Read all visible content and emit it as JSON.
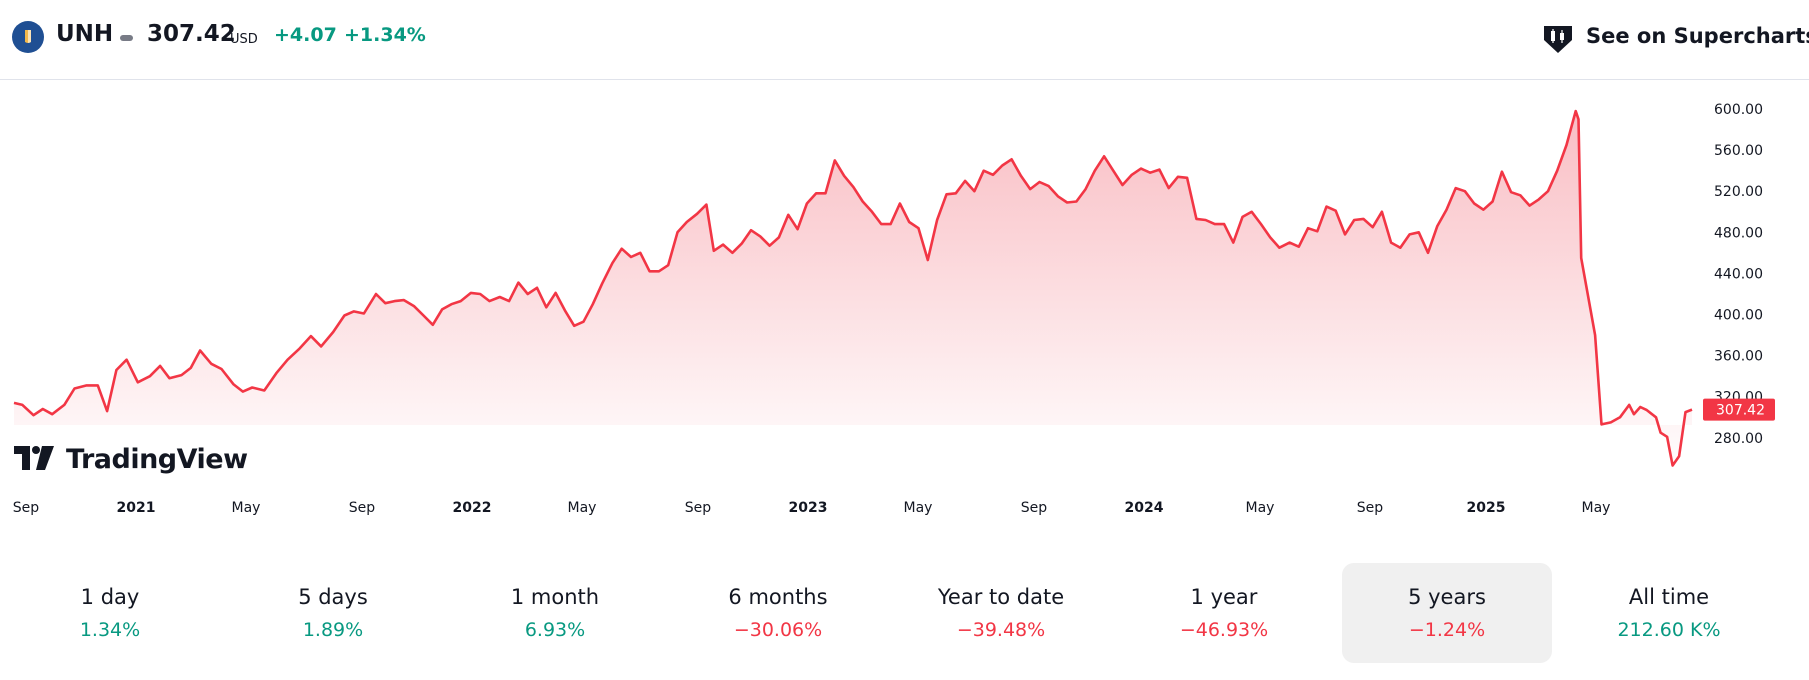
{
  "header": {
    "symbol": "UNH",
    "price": "307.42",
    "currency": "USD",
    "change": "+4.07",
    "change_percent": "+1.34%",
    "change_color": "#089981",
    "logo_icon": "unh-logo-icon",
    "supercharts_label": "See on Supercharts",
    "supercharts_icon": "supercharts-icon"
  },
  "watermark": {
    "text": "TradingView",
    "icon": "tradingview-logo-icon"
  },
  "colors": {
    "line": "#f23645",
    "area_top": "#f7a8b0",
    "last_price_bg": "#f23645",
    "up": "#089981",
    "down": "#f23645"
  },
  "chart_data": {
    "type": "area",
    "title": "",
    "xlabel": "",
    "ylabel": "",
    "y_ticks": [
      "600.00",
      "560.00",
      "520.00",
      "480.00",
      "440.00",
      "400.00",
      "360.00",
      "320.00",
      "280.00"
    ],
    "x_ticks": [
      {
        "label": "Sep",
        "bold": false
      },
      {
        "label": "2021",
        "bold": true
      },
      {
        "label": "May",
        "bold": false
      },
      {
        "label": "Sep",
        "bold": false
      },
      {
        "label": "2022",
        "bold": true
      },
      {
        "label": "May",
        "bold": false
      },
      {
        "label": "Sep",
        "bold": false
      },
      {
        "label": "2023",
        "bold": true
      },
      {
        "label": "May",
        "bold": false
      },
      {
        "label": "Sep",
        "bold": false
      },
      {
        "label": "2024",
        "bold": true
      },
      {
        "label": "May",
        "bold": false
      },
      {
        "label": "Sep",
        "bold": false
      },
      {
        "label": "2025",
        "bold": true
      },
      {
        "label": "May",
        "bold": false
      }
    ],
    "last_price": "307.42",
    "ylim": [
      240,
      630
    ],
    "grid": false,
    "series": [
      {
        "points": [
          [
            "2020-09-01",
            314
          ],
          [
            "2020-09-10",
            312
          ],
          [
            "2020-09-22",
            302
          ],
          [
            "2020-10-02",
            308
          ],
          [
            "2020-10-12",
            303
          ],
          [
            "2020-10-25",
            312
          ],
          [
            "2020-11-05",
            328
          ],
          [
            "2020-11-18",
            331
          ],
          [
            "2020-11-30",
            331
          ],
          [
            "2020-12-10",
            306
          ],
          [
            "2020-12-20",
            346
          ],
          [
            "2020-12-31",
            356
          ],
          [
            "2021-01-12",
            334
          ],
          [
            "2021-01-25",
            340
          ],
          [
            "2021-02-05",
            350
          ],
          [
            "2021-02-15",
            338
          ],
          [
            "2021-02-28",
            341
          ],
          [
            "2021-03-10",
            348
          ],
          [
            "2021-03-20",
            365
          ],
          [
            "2021-04-01",
            352
          ],
          [
            "2021-04-12",
            347
          ],
          [
            "2021-04-25",
            332
          ],
          [
            "2021-05-05",
            325
          ],
          [
            "2021-05-15",
            329
          ],
          [
            "2021-05-28",
            326
          ],
          [
            "2021-06-10",
            343
          ],
          [
            "2021-06-22",
            356
          ],
          [
            "2021-07-05",
            367
          ],
          [
            "2021-07-17",
            379
          ],
          [
            "2021-07-28",
            369
          ],
          [
            "2021-08-10",
            383
          ],
          [
            "2021-08-22",
            399
          ],
          [
            "2021-09-01",
            403
          ],
          [
            "2021-09-12",
            401
          ],
          [
            "2021-09-25",
            420
          ],
          [
            "2021-10-05",
            411
          ],
          [
            "2021-10-15",
            413
          ],
          [
            "2021-10-25",
            414
          ],
          [
            "2021-11-05",
            408
          ],
          [
            "2021-11-15",
            399
          ],
          [
            "2021-11-25",
            390
          ],
          [
            "2021-12-05",
            405
          ],
          [
            "2021-12-15",
            410
          ],
          [
            "2021-12-25",
            413
          ],
          [
            "2022-01-05",
            421
          ],
          [
            "2022-01-15",
            420
          ],
          [
            "2022-01-25",
            413
          ],
          [
            "2022-02-05",
            417
          ],
          [
            "2022-02-15",
            413
          ],
          [
            "2022-02-25",
            431
          ],
          [
            "2022-03-07",
            420
          ],
          [
            "2022-03-17",
            426
          ],
          [
            "2022-03-27",
            407
          ],
          [
            "2022-04-06",
            421
          ],
          [
            "2022-04-16",
            404
          ],
          [
            "2022-04-26",
            389
          ],
          [
            "2022-05-06",
            393
          ],
          [
            "2022-05-16",
            410
          ],
          [
            "2022-05-26",
            430
          ],
          [
            "2022-06-06",
            450
          ],
          [
            "2022-06-16",
            464
          ],
          [
            "2022-06-26",
            456
          ],
          [
            "2022-07-06",
            460
          ],
          [
            "2022-07-16",
            442
          ],
          [
            "2022-07-26",
            442
          ],
          [
            "2022-08-05",
            448
          ],
          [
            "2022-08-15",
            480
          ],
          [
            "2022-08-25",
            490
          ],
          [
            "2022-09-05",
            498
          ],
          [
            "2022-09-15",
            507
          ],
          [
            "2022-09-23",
            462
          ],
          [
            "2022-10-03",
            468
          ],
          [
            "2022-10-13",
            460
          ],
          [
            "2022-10-23",
            469
          ],
          [
            "2022-11-02",
            482
          ],
          [
            "2022-11-12",
            476
          ],
          [
            "2022-11-22",
            467
          ],
          [
            "2022-12-02",
            475
          ],
          [
            "2022-12-12",
            497
          ],
          [
            "2022-12-22",
            483
          ],
          [
            "2023-01-01",
            508
          ],
          [
            "2023-01-11",
            518
          ],
          [
            "2023-01-21",
            518
          ],
          [
            "2023-01-31",
            550
          ],
          [
            "2023-02-10",
            535
          ],
          [
            "2023-02-20",
            524
          ],
          [
            "2023-03-02",
            510
          ],
          [
            "2023-03-12",
            500
          ],
          [
            "2023-03-22",
            488
          ],
          [
            "2023-04-01",
            488
          ],
          [
            "2023-04-11",
            508
          ],
          [
            "2023-04-21",
            490
          ],
          [
            "2023-05-01",
            484
          ],
          [
            "2023-05-11",
            453
          ],
          [
            "2023-05-21",
            492
          ],
          [
            "2023-05-31",
            517
          ],
          [
            "2023-06-10",
            518
          ],
          [
            "2023-06-20",
            530
          ],
          [
            "2023-06-30",
            520
          ],
          [
            "2023-07-10",
            540
          ],
          [
            "2023-07-20",
            536
          ],
          [
            "2023-07-30",
            545
          ],
          [
            "2023-08-09",
            551
          ],
          [
            "2023-08-19",
            535
          ],
          [
            "2023-08-29",
            522
          ],
          [
            "2023-09-08",
            529
          ],
          [
            "2023-09-18",
            525
          ],
          [
            "2023-09-28",
            515
          ],
          [
            "2023-10-08",
            509
          ],
          [
            "2023-10-18",
            510
          ],
          [
            "2023-10-28",
            522
          ],
          [
            "2023-11-07",
            540
          ],
          [
            "2023-11-17",
            554
          ],
          [
            "2023-11-27",
            540
          ],
          [
            "2023-12-07",
            526
          ],
          [
            "2023-12-17",
            536
          ],
          [
            "2023-12-27",
            542
          ],
          [
            "2024-01-06",
            538
          ],
          [
            "2024-01-16",
            541
          ],
          [
            "2024-01-26",
            523
          ],
          [
            "2024-02-05",
            534
          ],
          [
            "2024-02-15",
            533
          ],
          [
            "2024-02-25",
            493
          ],
          [
            "2024-03-06",
            492
          ],
          [
            "2024-03-16",
            488
          ],
          [
            "2024-03-26",
            488
          ],
          [
            "2024-04-05",
            470
          ],
          [
            "2024-04-15",
            495
          ],
          [
            "2024-04-25",
            500
          ],
          [
            "2024-05-05",
            488
          ],
          [
            "2024-05-15",
            475
          ],
          [
            "2024-05-25",
            465
          ],
          [
            "2024-06-05",
            470
          ],
          [
            "2024-06-15",
            466
          ],
          [
            "2024-06-25",
            484
          ],
          [
            "2024-07-05",
            481
          ],
          [
            "2024-07-15",
            505
          ],
          [
            "2024-07-25",
            501
          ],
          [
            "2024-08-04",
            478
          ],
          [
            "2024-08-14",
            492
          ],
          [
            "2024-08-24",
            493
          ],
          [
            "2024-09-03",
            485
          ],
          [
            "2024-09-13",
            500
          ],
          [
            "2024-09-23",
            470
          ],
          [
            "2024-10-03",
            465
          ],
          [
            "2024-10-13",
            478
          ],
          [
            "2024-10-23",
            480
          ],
          [
            "2024-11-02",
            460
          ],
          [
            "2024-11-12",
            486
          ],
          [
            "2024-11-22",
            502
          ],
          [
            "2024-12-02",
            523
          ],
          [
            "2024-12-12",
            520
          ],
          [
            "2024-12-22",
            508
          ],
          [
            "2025-01-01",
            502
          ],
          [
            "2025-01-11",
            510
          ],
          [
            "2025-01-21",
            539
          ],
          [
            "2025-01-31",
            519
          ],
          [
            "2025-02-10",
            516
          ],
          [
            "2025-02-20",
            506
          ],
          [
            "2025-03-02",
            512
          ],
          [
            "2025-03-12",
            520
          ],
          [
            "2025-03-22",
            540
          ],
          [
            "2025-04-01",
            565
          ],
          [
            "2025-04-11",
            598
          ],
          [
            "2025-04-14",
            590
          ],
          [
            "2025-04-17",
            455
          ],
          [
            "2025-04-24",
            420
          ],
          [
            "2025-05-02",
            380
          ],
          [
            "2025-05-09",
            293
          ],
          [
            "2025-05-19",
            295
          ],
          [
            "2025-05-29",
            300
          ],
          [
            "2025-06-08",
            312
          ],
          [
            "2025-06-13",
            303
          ],
          [
            "2025-06-20",
            310
          ],
          [
            "2025-06-27",
            307
          ],
          [
            "2025-07-07",
            300
          ],
          [
            "2025-07-12",
            285
          ],
          [
            "2025-07-19",
            281
          ],
          [
            "2025-07-25",
            253
          ],
          [
            "2025-08-01",
            262
          ],
          [
            "2025-08-08",
            305
          ],
          [
            "2025-08-15",
            307.42
          ]
        ]
      }
    ]
  },
  "periods": [
    {
      "label": "1 day",
      "value": "1.34%",
      "dir": "up",
      "active": false
    },
    {
      "label": "5 days",
      "value": "1.89%",
      "dir": "up",
      "active": false
    },
    {
      "label": "1 month",
      "value": "6.93%",
      "dir": "up",
      "active": false
    },
    {
      "label": "6 months",
      "value": "−30.06%",
      "dir": "down",
      "active": false
    },
    {
      "label": "Year to date",
      "value": "−39.48%",
      "dir": "down",
      "active": false
    },
    {
      "label": "1 year",
      "value": "−46.93%",
      "dir": "down",
      "active": false
    },
    {
      "label": "5 years",
      "value": "−1.24%",
      "dir": "down",
      "active": true
    },
    {
      "label": "All time",
      "value": "212.60 K%",
      "dir": "up",
      "active": false
    }
  ]
}
